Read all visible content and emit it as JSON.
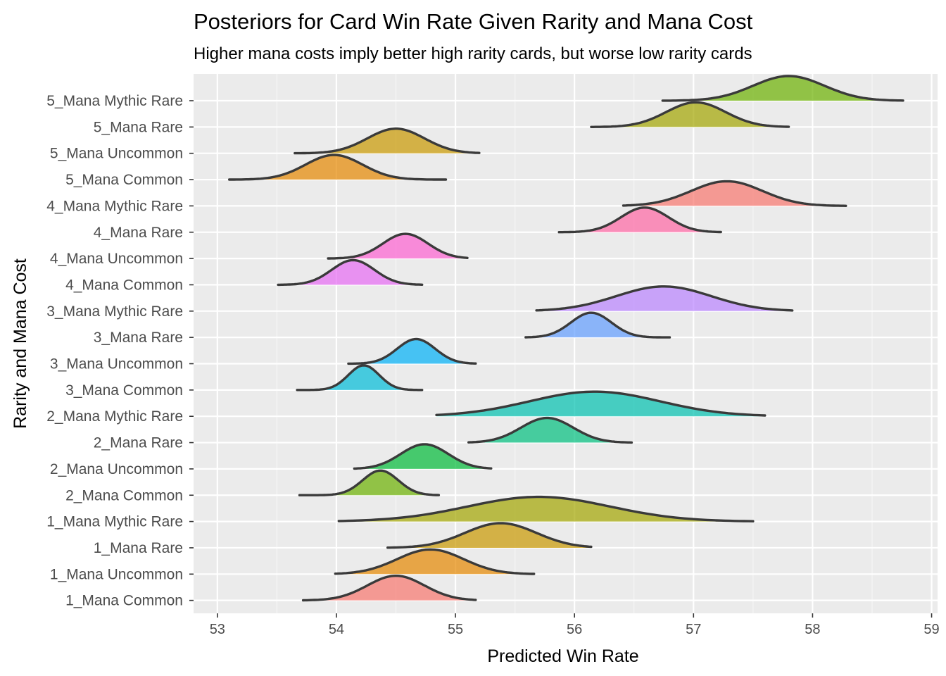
{
  "chart_data": {
    "type": "ridgeline",
    "title": "Posteriors for Card Win Rate Given Rarity and Mana Cost",
    "subtitle": "Higher mana costs imply better high rarity cards, but worse low rarity cards",
    "xlabel": "Predicted Win Rate",
    "ylabel": "Rarity and Mana Cost",
    "xlim": [
      52.8,
      59.05
    ],
    "xticks": [
      53,
      54,
      55,
      56,
      57,
      58,
      59
    ],
    "grid": true,
    "legend": "none",
    "series": [
      {
        "label": "1_Mana Common",
        "min": 53.72,
        "max": 55.17,
        "mode": 54.5,
        "sd": 0.24,
        "color": "#F8766D"
      },
      {
        "label": "1_Mana Uncommon",
        "min": 53.99,
        "max": 55.66,
        "mode": 54.79,
        "sd": 0.28,
        "color": "#E58700"
      },
      {
        "label": "1_Mana Rare",
        "min": 54.43,
        "max": 56.14,
        "mode": 55.38,
        "sd": 0.3,
        "color": "#C99800"
      },
      {
        "label": "1_Mana Mythic Rare",
        "min": 54.02,
        "max": 57.5,
        "mode": 55.7,
        "sd": 0.6,
        "color": "#A3A500"
      },
      {
        "label": "2_Mana Common",
        "min": 53.69,
        "max": 54.86,
        "mode": 54.37,
        "sd": 0.15,
        "color": "#6BB100"
      },
      {
        "label": "2_Mana Uncommon",
        "min": 54.15,
        "max": 55.3,
        "mode": 54.74,
        "sd": 0.2,
        "color": "#00BA38"
      },
      {
        "label": "2_Mana Rare",
        "min": 55.11,
        "max": 56.48,
        "mode": 55.77,
        "sd": 0.22,
        "color": "#00BF7D"
      },
      {
        "label": "2_Mana Mythic Rare",
        "min": 54.84,
        "max": 57.6,
        "mode": 56.17,
        "sd": 0.55,
        "color": "#00C0AF"
      },
      {
        "label": "3_Mana Common",
        "min": 53.67,
        "max": 54.72,
        "mode": 54.23,
        "sd": 0.13,
        "color": "#00BCD8"
      },
      {
        "label": "3_Mana Uncommon",
        "min": 54.1,
        "max": 55.17,
        "mode": 54.67,
        "sd": 0.16,
        "color": "#00B0F6"
      },
      {
        "label": "3_Mana Rare",
        "min": 55.59,
        "max": 56.8,
        "mode": 56.14,
        "sd": 0.17,
        "color": "#619CFF"
      },
      {
        "label": "3_Mana Mythic Rare",
        "min": 55.68,
        "max": 57.83,
        "mode": 56.75,
        "sd": 0.4,
        "color": "#B983FF"
      },
      {
        "label": "4_Mana Common",
        "min": 53.51,
        "max": 54.72,
        "mode": 54.14,
        "sd": 0.18,
        "color": "#E76BF3"
      },
      {
        "label": "4_Mana Uncommon",
        "min": 53.93,
        "max": 55.1,
        "mode": 54.58,
        "sd": 0.19,
        "color": "#FD61D1"
      },
      {
        "label": "4_Mana Rare",
        "min": 55.87,
        "max": 57.23,
        "mode": 56.59,
        "sd": 0.2,
        "color": "#FF67A4"
      },
      {
        "label": "4_Mana Mythic Rare",
        "min": 56.41,
        "max": 58.28,
        "mode": 57.28,
        "sd": 0.3,
        "color": "#F8766D"
      },
      {
        "label": "5_Mana Common",
        "min": 53.1,
        "max": 54.92,
        "mode": 53.98,
        "sd": 0.24,
        "color": "#E58700"
      },
      {
        "label": "5_Mana Uncommon",
        "min": 53.65,
        "max": 55.2,
        "mode": 54.5,
        "sd": 0.24,
        "color": "#C99800"
      },
      {
        "label": "5_Mana Rare",
        "min": 56.14,
        "max": 57.8,
        "mode": 57.02,
        "sd": 0.25,
        "color": "#A3A500"
      },
      {
        "label": "5_Mana Mythic Rare",
        "min": 56.74,
        "max": 58.76,
        "mode": 57.8,
        "sd": 0.3,
        "color": "#6BB100"
      }
    ]
  },
  "colors": {
    "panel": "#EBEBEB",
    "grid_major": "#FFFFFF",
    "outline": "#3A3A3A"
  }
}
